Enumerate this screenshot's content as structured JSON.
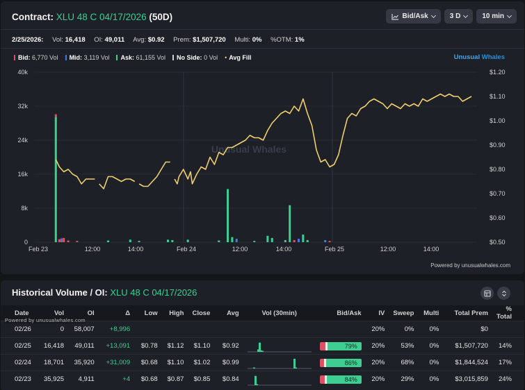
{
  "header": {
    "prefix": "Contract:",
    "contract": "XLU 48 C 04/17/2026",
    "dte": "(50D)",
    "buttons": [
      {
        "label": "Bid/Ask",
        "icon": "line-chart-icon"
      },
      {
        "label": "3 D"
      },
      {
        "label": "10 min"
      }
    ]
  },
  "stats": {
    "date": "2/25/2026:",
    "vol_label": "Vol:",
    "vol": "16,418",
    "oi_label": "OI:",
    "oi": "49,011",
    "avg_label": "Avg:",
    "avg": "$0.92",
    "prem_label": "Prem:",
    "prem": "$1,507,720",
    "multi_label": "Multi:",
    "multi": "0%",
    "otm_label": "%OTM:",
    "otm": "1%"
  },
  "legend": [
    {
      "label": "Bid:",
      "value": "6,770 Vol",
      "color": "#e05063"
    },
    {
      "label": "Mid:",
      "value": "3,119 Vol",
      "color": "#3d7de0"
    },
    {
      "label": "Ask:",
      "value": "61,155 Vol",
      "color": "#3ccf91"
    },
    {
      "label": "No Side:",
      "value": "0 Vol",
      "color": "#d0d0d0"
    },
    {
      "label": "Avg Fill",
      "value": "",
      "color": "#f0d070"
    }
  ],
  "brand": {
    "word1": "Unusual",
    "word2": "Whales"
  },
  "watermark": "Unusual Whales",
  "powered": "Powered by unusualwhales.com",
  "colors": {
    "bid": "#e05063",
    "mid": "#3d7de0",
    "ask": "#3ccf91",
    "price": "#f0cf6e",
    "accent": "#3ccf91"
  },
  "chart_data": {
    "type": "bar+line",
    "y_left_ticks": [
      "40k",
      "32k",
      "24k",
      "16k",
      "8k",
      "0"
    ],
    "y_left_range": [
      0,
      40000
    ],
    "y_right_ticks": [
      "$1.20",
      "$1.10",
      "$1.00",
      "$0.90",
      "$0.80",
      "$0.70",
      "$0.60",
      "$0.50"
    ],
    "y_right_range": [
      0.5,
      1.2
    ],
    "x_ticks": [
      "Feb 23",
      "12:00",
      "14:00",
      "Feb 24",
      "12:00",
      "14:00",
      "Feb 25",
      "12:00",
      "14:00"
    ],
    "volume_bars": [
      {
        "t": 0.2,
        "ask": 29500,
        "bid": 600
      },
      {
        "t": 1,
        "bid": 700
      },
      {
        "t": 1.5,
        "mid": 900
      },
      {
        "t": 2,
        "bid": 1000
      },
      {
        "t": 3,
        "bid": 400
      },
      {
        "t": 5,
        "bid": 300
      },
      {
        "t": 12,
        "ask": 400
      },
      {
        "t": 17,
        "ask": 600
      },
      {
        "t": 19,
        "ask": 300
      },
      {
        "t": 25.5,
        "ask": 600
      },
      {
        "t": 26.5,
        "ask": 500
      },
      {
        "t": 30,
        "ask": 600
      },
      {
        "t": 37,
        "ask": 400
      },
      {
        "t": 39,
        "ask": 12500
      },
      {
        "t": 40,
        "ask": 1200
      },
      {
        "t": 41,
        "mid": 800
      },
      {
        "t": 45,
        "ask": 300
      },
      {
        "t": 48,
        "ask": 1500
      },
      {
        "t": 49,
        "ask": 1000
      },
      {
        "t": 52,
        "ask": 500
      },
      {
        "t": 53,
        "ask": 8700
      },
      {
        "t": 54,
        "bid": 500
      },
      {
        "t": 55,
        "mid": 800
      },
      {
        "t": 56,
        "ask": 1800
      },
      {
        "t": 57,
        "ask": 500
      },
      {
        "t": 61,
        "mid": 500
      },
      {
        "t": 62,
        "bid": 300
      }
    ],
    "avg_fill": [
      [
        0.2,
        0.84
      ],
      [
        1,
        0.81
      ],
      [
        2,
        0.79
      ],
      [
        3,
        0.8
      ],
      [
        4,
        0.78
      ],
      [
        5,
        0.77
      ],
      [
        6,
        0.74
      ],
      [
        7,
        0.76
      ],
      [
        8,
        0.76
      ],
      [
        9,
        0.76
      ],
      null,
      [
        10,
        0.74
      ],
      [
        11,
        0.72
      ],
      [
        12,
        0.77
      ],
      [
        13,
        0.77
      ],
      [
        14,
        0.76
      ],
      [
        15,
        0.75
      ],
      [
        16,
        0.76
      ],
      [
        17,
        0.76
      ],
      [
        18,
        0.75
      ],
      null,
      [
        19,
        0.74
      ],
      [
        20,
        0.73
      ],
      [
        21,
        0.73
      ],
      [
        22,
        0.75
      ],
      [
        23,
        0.77
      ],
      [
        24,
        0.8
      ],
      [
        25,
        0.83
      ],
      [
        26,
        0.83
      ],
      null,
      [
        27,
        0.76
      ],
      [
        27.6,
        0.74
      ],
      [
        28,
        0.77
      ],
      [
        29,
        0.8
      ],
      [
        30,
        0.76
      ],
      [
        30.6,
        0.79
      ],
      [
        31,
        0.74
      ],
      [
        32,
        0.78
      ],
      [
        33,
        0.81
      ],
      [
        34,
        0.8
      ],
      [
        35,
        0.85
      ],
      [
        36,
        0.82
      ],
      [
        37,
        0.87
      ],
      [
        38,
        0.86
      ],
      [
        39,
        0.89
      ],
      [
        40,
        0.89
      ],
      [
        41,
        0.9
      ],
      [
        42,
        0.91
      ],
      [
        43,
        0.92
      ],
      [
        44,
        0.94
      ],
      [
        45,
        0.93
      ],
      [
        46,
        0.93
      ],
      [
        47,
        0.92
      ],
      [
        48,
        0.96
      ],
      [
        49,
        0.99
      ],
      [
        50,
        1.01
      ],
      [
        51,
        1.03
      ],
      [
        52,
        1.04
      ],
      [
        53,
        1.03
      ],
      [
        54,
        1.06
      ],
      [
        55,
        1.04
      ],
      [
        56,
        1.09
      ],
      [
        57,
        1.03
      ],
      [
        58,
        0.98
      ],
      [
        59,
        0.88
      ],
      [
        60,
        0.83
      ],
      [
        61,
        0.84
      ],
      [
        62,
        0.81
      ],
      [
        63,
        0.82
      ],
      [
        64,
        0.86
      ],
      [
        65,
        0.94
      ],
      [
        66,
        1.01
      ],
      [
        67,
        1.03
      ],
      [
        68,
        1.02
      ],
      [
        69,
        1.05
      ],
      [
        70,
        1.06
      ],
      [
        71,
        1.08
      ],
      [
        72,
        1.09
      ],
      [
        73,
        1.08
      ],
      [
        74,
        1.07
      ],
      [
        75,
        1.05
      ],
      [
        76,
        1.07
      ],
      [
        77,
        1.06
      ],
      [
        78,
        1.05
      ],
      [
        79,
        1.07
      ],
      [
        80,
        1.06
      ],
      [
        81,
        1.07
      ],
      [
        82,
        1.06
      ],
      [
        83,
        1.09
      ],
      [
        84,
        1.08
      ],
      [
        85,
        1.09
      ],
      [
        86,
        1.1
      ],
      [
        87,
        1.11
      ],
      [
        88,
        1.1
      ],
      [
        89,
        1.11
      ],
      [
        90,
        1.1
      ],
      [
        91,
        1.1
      ],
      [
        92,
        1.08
      ],
      [
        93,
        1.09
      ],
      [
        94,
        1.1
      ]
    ]
  },
  "history": {
    "title_prefix": "Historical Volume / OI:",
    "title_contract": "XLU 48 C 04/17/2026",
    "powered": "Powered by unusualwhales.com",
    "columns": [
      "Date",
      "Vol",
      "OI",
      "Δ",
      "Low",
      "High",
      "Close",
      "Avg",
      "Vol (30min)",
      "Bid/Ask",
      "IV",
      "Sweep",
      "Multi",
      "Total Prem",
      "% Total"
    ],
    "rows": [
      {
        "date": "02/26",
        "vol": "0",
        "oi": "58,007",
        "delta": "+8,996",
        "low": "",
        "high": "",
        "close": "",
        "avg": "",
        "ba_pct": "",
        "ba": null,
        "iv": "20%",
        "sweep": "0%",
        "multi": "0%",
        "prem": "$0",
        "pct_total": "",
        "spark": []
      },
      {
        "date": "02/25",
        "vol": "16,418",
        "oi": "49,011",
        "delta": "+13,091",
        "low": "$0.78",
        "high": "$1.12",
        "close": "$1.10",
        "avg": "$0.92",
        "ba_pct": "79%",
        "ba": {
          "bid": 0.13,
          "ask": 0.79
        },
        "iv": "20%",
        "sweep": "53%",
        "multi": "0%",
        "prem": "$1,507,720",
        "pct_total": "14%",
        "spark": [
          [
            14,
            0.25
          ],
          [
            16,
            0.95
          ],
          [
            18,
            0.15
          ],
          [
            20,
            0.1
          ]
        ]
      },
      {
        "date": "02/24",
        "vol": "18,701",
        "oi": "35,920",
        "delta": "+31,009",
        "low": "$0.68",
        "high": "$1.10",
        "close": "$1.02",
        "avg": "$0.99",
        "ba_pct": "86%",
        "ba": {
          "bid": 0.1,
          "ask": 0.86
        },
        "iv": "20%",
        "sweep": "68%",
        "multi": "0%",
        "prem": "$1,844,524",
        "pct_total": "17%",
        "spark": [
          [
            8,
            0.1
          ],
          [
            66,
            1.0
          ],
          [
            68,
            0.1
          ]
        ]
      },
      {
        "date": "02/23",
        "vol": "35,925",
        "oi": "4,911",
        "delta": "+4",
        "low": "$0.68",
        "high": "$0.87",
        "close": "$0.85",
        "avg": "$0.84",
        "ba_pct": "84%",
        "ba": {
          "bid": 0.12,
          "ask": 0.84
        },
        "iv": "20%",
        "sweep": "29%",
        "multi": "0%",
        "prem": "$3,015,859",
        "pct_total": "24%",
        "spark": [
          [
            10,
            0.95
          ],
          [
            12,
            0.1
          ]
        ]
      }
    ]
  }
}
